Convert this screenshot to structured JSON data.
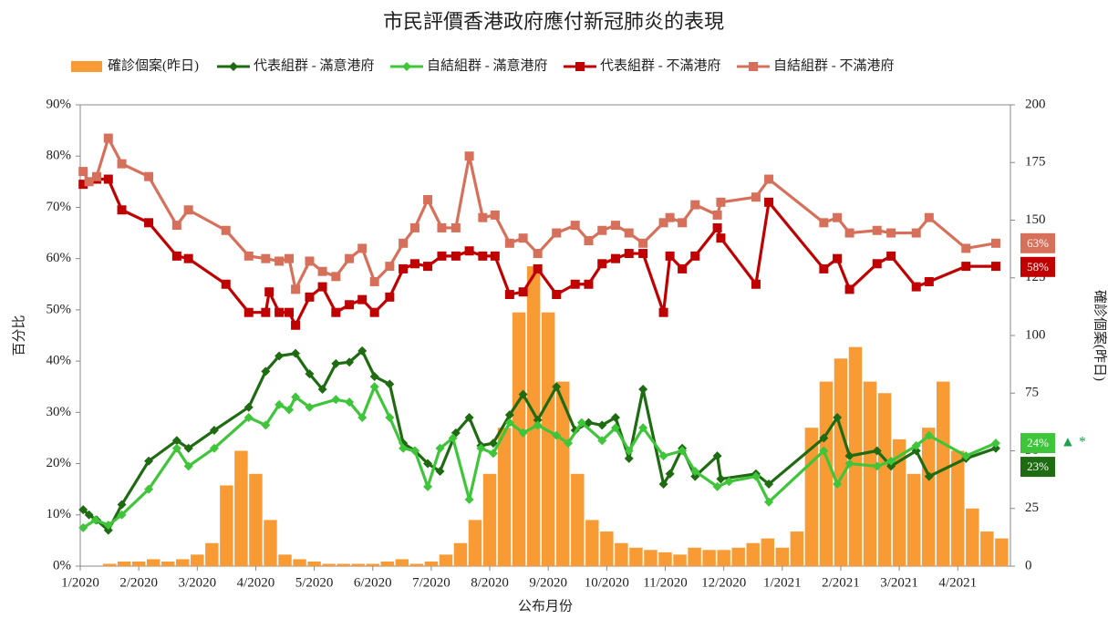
{
  "chart_data": {
    "type": "combo",
    "title": "市民評價香港政府應付新冠肺炎的表現",
    "x_label": "公布月份",
    "y_label": "百分比",
    "y2_label": "確診個案(昨日)",
    "xlim": [
      0,
      15.9
    ],
    "xticks": [
      {
        "value": 0,
        "label": "1/2020"
      },
      {
        "value": 1,
        "label": "2/2020"
      },
      {
        "value": 2,
        "label": "3/2020"
      },
      {
        "value": 3,
        "label": "4/2020"
      },
      {
        "value": 4,
        "label": "5/2020"
      },
      {
        "value": 5,
        "label": "6/2020"
      },
      {
        "value": 6,
        "label": "7/2020"
      },
      {
        "value": 7,
        "label": "8/2020"
      },
      {
        "value": 8,
        "label": "9/2020"
      },
      {
        "value": 9,
        "label": "10/2020"
      },
      {
        "value": 10,
        "label": "11/2020"
      },
      {
        "value": 11,
        "label": "12/2020"
      },
      {
        "value": 12,
        "label": "1/2021"
      },
      {
        "value": 13,
        "label": "2/2021"
      },
      {
        "value": 14,
        "label": "3/2021"
      },
      {
        "value": 15,
        "label": "4/2021"
      }
    ],
    "ylim": [
      0,
      90
    ],
    "yticks": [
      {
        "value": 0,
        "label": "0%"
      },
      {
        "value": 10,
        "label": "10%"
      },
      {
        "value": 20,
        "label": "20%"
      },
      {
        "value": 30,
        "label": "30%"
      },
      {
        "value": 40,
        "label": "40%"
      },
      {
        "value": 50,
        "label": "50%"
      },
      {
        "value": 60,
        "label": "60%"
      },
      {
        "value": 70,
        "label": "70%"
      },
      {
        "value": 80,
        "label": "80%"
      },
      {
        "value": 90,
        "label": "90%"
      }
    ],
    "y2lim": [
      0,
      200
    ],
    "y2ticks": [
      0,
      25,
      50,
      75,
      100,
      125,
      150,
      175,
      200
    ],
    "annotations": [
      "▲ *"
    ],
    "series": [
      {
        "name": "確診個案(昨日)",
        "type": "bar",
        "axis": "y2",
        "color": "#f89b35",
        "x": [
          0,
          0.25,
          0.5,
          0.75,
          1,
          1.25,
          1.5,
          1.75,
          2,
          2.25,
          2.5,
          2.75,
          3,
          3.25,
          3.5,
          3.75,
          4,
          4.25,
          4.5,
          4.75,
          5,
          5.25,
          5.5,
          5.75,
          6,
          6.25,
          6.5,
          6.75,
          7,
          7.25,
          7.5,
          7.75,
          8,
          8.25,
          8.5,
          8.75,
          9,
          9.25,
          9.5,
          9.75,
          10,
          10.25,
          10.5,
          10.75,
          11,
          11.25,
          11.5,
          11.75,
          12,
          12.25,
          12.5,
          12.75,
          13,
          13.25,
          13.5,
          13.75,
          14,
          14.25,
          14.5,
          14.75,
          15,
          15.25,
          15.5,
          15.75
        ],
        "values": [
          0,
          0,
          1,
          2,
          2,
          3,
          2,
          3,
          5,
          10,
          35,
          50,
          40,
          20,
          5,
          3,
          2,
          1,
          1,
          1,
          1,
          2,
          3,
          1,
          2,
          5,
          10,
          20,
          40,
          60,
          110,
          130,
          110,
          80,
          40,
          20,
          15,
          10,
          8,
          7,
          6,
          5,
          8,
          7,
          7,
          8,
          10,
          12,
          8,
          15,
          60,
          80,
          90,
          95,
          80,
          75,
          55,
          40,
          60,
          80,
          50,
          25,
          15,
          12
        ]
      },
      {
        "name": "代表組群 - 滿意港府",
        "type": "line",
        "marker": "diamond",
        "color": "#1e6b12",
        "x": [
          0.05,
          0.15,
          0.28,
          0.48,
          0.71,
          1.17,
          1.65,
          1.85,
          2.29,
          2.88,
          3.17,
          3.4,
          3.68,
          3.92,
          4.14,
          4.37,
          4.6,
          4.82,
          5.03,
          5.29,
          5.52,
          5.72,
          5.94,
          6.15,
          6.42,
          6.65,
          6.85,
          7.06,
          7.34,
          7.57,
          7.82,
          8.14,
          8.46,
          8.69,
          8.92,
          9.15,
          9.38,
          9.62,
          9.97,
          10.08,
          10.29,
          10.51,
          10.89,
          10.95,
          11.55,
          11.77,
          12.71,
          12.94,
          13.15,
          13.62,
          13.86,
          14.29,
          14.51,
          15.14,
          15.65
        ],
        "values": [
          11,
          10,
          9,
          7,
          12,
          20.5,
          24.5,
          23,
          26.5,
          31,
          38,
          41,
          41.5,
          37.5,
          34.5,
          39.5,
          39.8,
          42,
          37,
          35.5,
          24,
          22.5,
          20,
          18.5,
          26,
          29,
          23.5,
          24,
          29.5,
          33.5,
          28.5,
          35,
          26.5,
          28,
          27.5,
          29,
          21,
          34.5,
          16,
          18,
          23,
          17.5,
          21.5,
          17,
          18,
          16,
          25,
          29,
          21.5,
          22.5,
          19.5,
          22.5,
          17.5,
          21,
          23
        ],
        "value_labels": [
          null,
          null,
          null,
          null,
          null,
          null,
          null,
          null,
          null,
          null,
          null,
          null,
          null,
          null,
          null,
          null,
          null,
          null,
          null,
          null,
          null,
          null,
          null,
          null,
          null,
          null,
          null,
          null,
          null,
          null,
          null,
          null,
          null,
          null,
          null,
          null,
          null,
          null,
          null,
          null,
          null,
          null,
          null,
          null,
          null,
          null,
          null,
          null,
          null,
          null,
          null,
          null,
          null,
          null,
          "23%"
        ]
      },
      {
        "name": "自結組群 - 滿意港府",
        "type": "line",
        "marker": "diamond",
        "color": "#3fc53a",
        "x": [
          0.05,
          0.26,
          0.48,
          0.71,
          1.17,
          1.65,
          1.85,
          2.29,
          2.88,
          3.17,
          3.4,
          3.57,
          3.68,
          3.92,
          4.37,
          4.6,
          4.82,
          5.03,
          5.29,
          5.52,
          5.72,
          5.94,
          6.15,
          6.37,
          6.65,
          6.85,
          7.06,
          7.34,
          7.57,
          7.82,
          8.14,
          8.34,
          8.57,
          8.92,
          9.15,
          9.38,
          9.62,
          9.97,
          10.29,
          10.51,
          10.89,
          11.09,
          11.55,
          11.77,
          12.71,
          12.94,
          13.15,
          13.62,
          13.86,
          14.29,
          14.51,
          15.14,
          15.65
        ],
        "values": [
          7.5,
          9,
          8,
          10,
          15,
          23,
          19.5,
          23,
          29,
          27.5,
          31.5,
          30.5,
          33,
          31,
          32.5,
          32,
          29,
          35,
          29,
          23,
          22.5,
          15.5,
          23,
          25,
          13,
          23,
          22,
          28,
          26,
          27.5,
          25.5,
          24,
          28,
          24.5,
          27,
          22.5,
          27,
          21.5,
          22.5,
          18.5,
          15.5,
          16.5,
          17.5,
          12.5,
          22.5,
          16,
          20,
          19.5,
          20.5,
          23.5,
          25.5,
          21.5,
          24
        ],
        "value_labels": [
          null,
          null,
          null,
          null,
          null,
          null,
          null,
          null,
          null,
          null,
          null,
          null,
          null,
          null,
          null,
          null,
          null,
          null,
          null,
          null,
          null,
          null,
          null,
          null,
          null,
          null,
          null,
          null,
          null,
          null,
          null,
          null,
          null,
          null,
          null,
          null,
          null,
          null,
          null,
          null,
          null,
          null,
          null,
          null,
          null,
          null,
          null,
          null,
          null,
          null,
          null,
          null,
          "24%"
        ]
      },
      {
        "name": "代表組群 - 不滿港府",
        "type": "line",
        "marker": "square",
        "color": "#c00000",
        "x": [
          0.05,
          0.28,
          0.48,
          0.71,
          1.17,
          1.65,
          1.85,
          2.49,
          2.88,
          3.17,
          3.23,
          3.4,
          3.57,
          3.68,
          3.92,
          4.14,
          4.37,
          4.6,
          4.82,
          5.03,
          5.29,
          5.52,
          5.72,
          5.94,
          6.18,
          6.42,
          6.65,
          6.88,
          7.09,
          7.34,
          7.57,
          7.82,
          8.14,
          8.46,
          8.69,
          8.92,
          9.15,
          9.38,
          9.62,
          9.97,
          10.08,
          10.29,
          10.51,
          10.89,
          10.95,
          11.55,
          11.77,
          12.71,
          12.94,
          13.15,
          13.62,
          13.86,
          14.29,
          14.51,
          15.14,
          15.65
        ],
        "values": [
          74.5,
          75.5,
          75.5,
          69.5,
          67,
          60.5,
          60,
          55,
          49.5,
          49.5,
          53.5,
          49.5,
          49.5,
          47,
          52.5,
          54.5,
          49.5,
          51,
          52,
          49.5,
          52.5,
          58,
          59,
          58.5,
          60.5,
          60.5,
          61.5,
          60.5,
          60.5,
          53,
          53.5,
          58,
          53,
          55,
          55,
          59,
          60,
          61,
          61,
          49.5,
          60.5,
          58,
          60.5,
          66,
          64,
          55,
          71,
          58,
          60,
          54,
          59,
          60.5,
          54.5,
          55.5,
          58.5,
          58.5
        ],
        "value_labels": [
          null,
          null,
          null,
          null,
          null,
          null,
          null,
          null,
          null,
          null,
          null,
          null,
          null,
          null,
          null,
          null,
          null,
          null,
          null,
          null,
          null,
          null,
          null,
          null,
          null,
          null,
          null,
          null,
          null,
          null,
          null,
          null,
          null,
          null,
          null,
          null,
          null,
          null,
          null,
          null,
          null,
          null,
          null,
          null,
          null,
          null,
          null,
          null,
          null,
          null,
          null,
          null,
          null,
          null,
          null,
          "58%"
        ]
      },
      {
        "name": "自結組群 - 不滿港府",
        "type": "line",
        "marker": "square",
        "color": "#d7705a",
        "x": [
          0.05,
          0.15,
          0.28,
          0.48,
          0.71,
          1.17,
          1.65,
          1.85,
          2.49,
          2.88,
          3.17,
          3.4,
          3.57,
          3.68,
          3.92,
          4.14,
          4.37,
          4.6,
          4.82,
          5.03,
          5.29,
          5.52,
          5.72,
          5.94,
          6.18,
          6.42,
          6.65,
          6.88,
          7.09,
          7.34,
          7.57,
          7.82,
          8.14,
          8.46,
          8.69,
          8.92,
          9.15,
          9.38,
          9.62,
          9.97,
          10.08,
          10.29,
          10.51,
          10.89,
          10.95,
          11.55,
          11.77,
          12.71,
          12.94,
          13.15,
          13.62,
          13.86,
          14.29,
          14.51,
          15.14,
          15.65
        ],
        "values": [
          77,
          75,
          76,
          83.5,
          78.5,
          76,
          66.5,
          69.5,
          65.5,
          60.5,
          60,
          59.5,
          60,
          54,
          59.5,
          57.5,
          56.5,
          60,
          62,
          55.5,
          58.5,
          63,
          66,
          71.5,
          66,
          66,
          80,
          68,
          68.5,
          63,
          64,
          61,
          65,
          66.5,
          63.5,
          65.5,
          66.5,
          65,
          63,
          67,
          68,
          67,
          70.5,
          68.5,
          71,
          72,
          75.5,
          67,
          68,
          65,
          65.5,
          65,
          65,
          68,
          62,
          63
        ],
        "value_labels": [
          null,
          null,
          null,
          null,
          null,
          null,
          null,
          null,
          null,
          null,
          null,
          null,
          null,
          null,
          null,
          null,
          null,
          null,
          null,
          null,
          null,
          null,
          null,
          null,
          null,
          null,
          null,
          null,
          null,
          null,
          null,
          null,
          null,
          null,
          null,
          null,
          null,
          null,
          null,
          null,
          null,
          null,
          null,
          null,
          null,
          null,
          null,
          null,
          null,
          null,
          null,
          null,
          null,
          null,
          null,
          "63%"
        ]
      }
    ]
  }
}
